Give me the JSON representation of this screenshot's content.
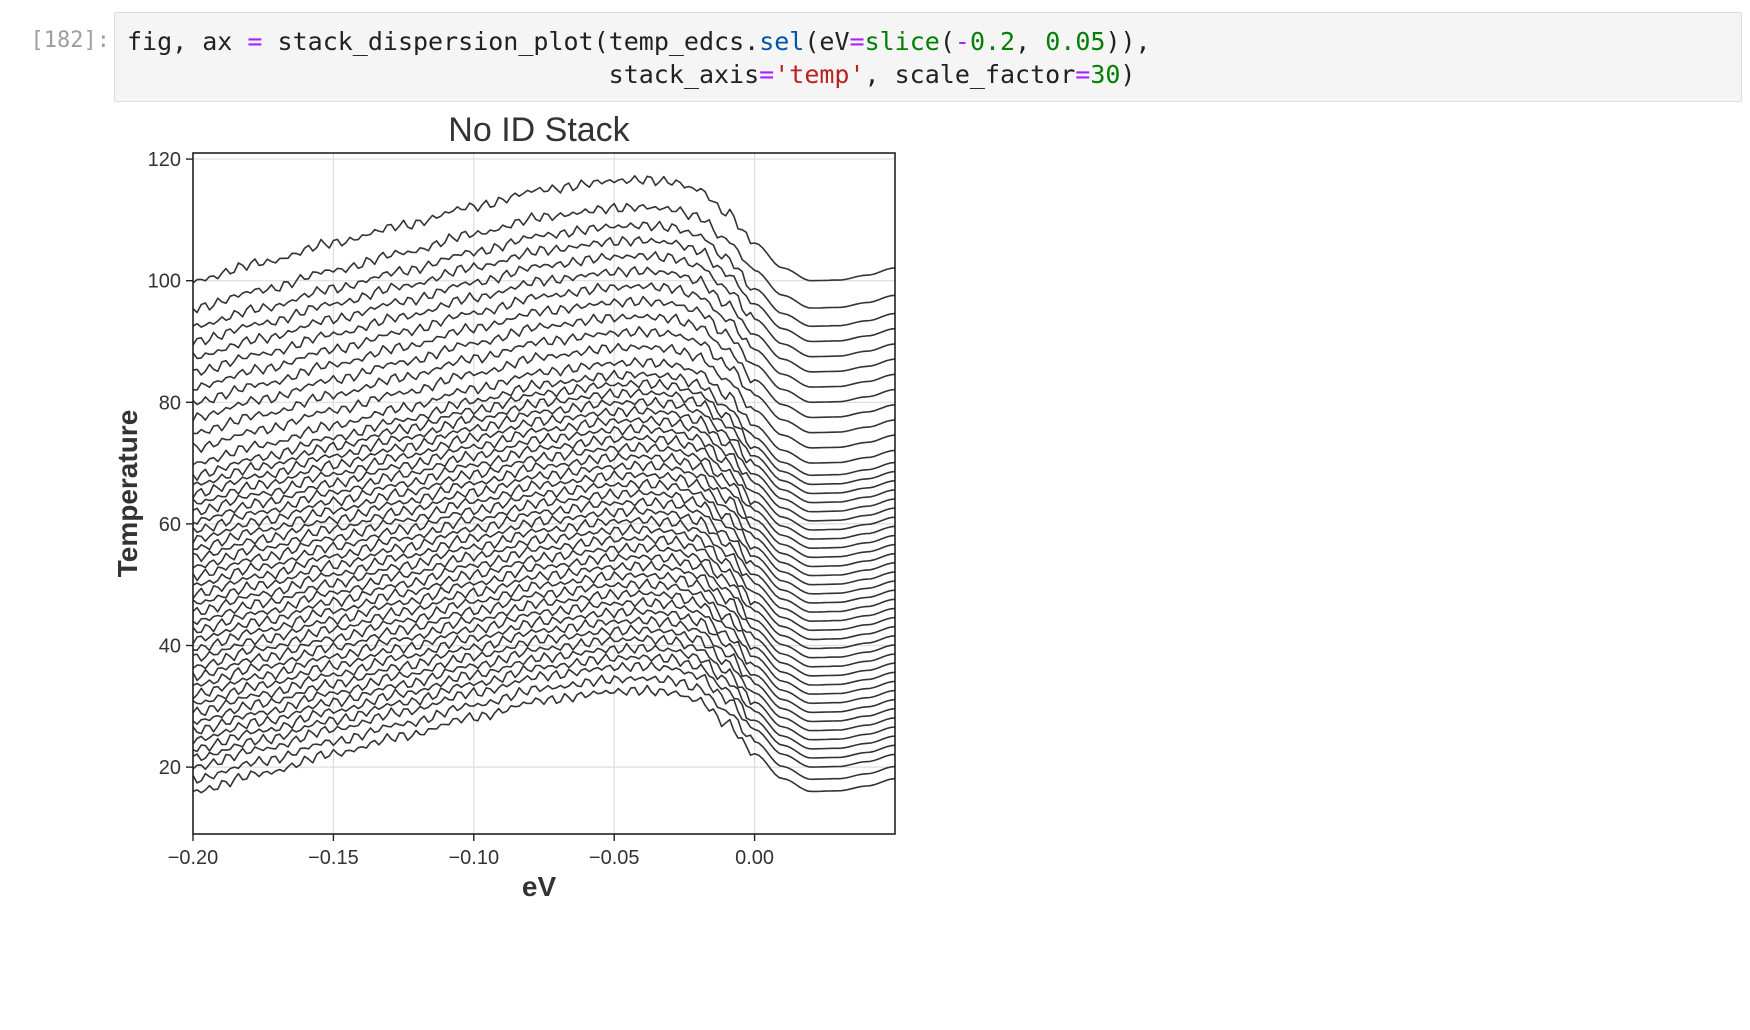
{
  "cell": {
    "prompt": "[182]:",
    "code_lines": [
      [
        {
          "t": "fig, ax ",
          "c": ""
        },
        {
          "t": "=",
          "c": "t-op"
        },
        {
          "t": " stack_dispersion_plot(temp_edcs.",
          "c": ""
        },
        {
          "t": "sel",
          "c": "t-func"
        },
        {
          "t": "(eV",
          "c": ""
        },
        {
          "t": "=",
          "c": "t-op"
        },
        {
          "t": "slice",
          "c": "t-builtin"
        },
        {
          "t": "(",
          "c": ""
        },
        {
          "t": "-",
          "c": "t-op"
        },
        {
          "t": "0.2",
          "c": "t-num"
        },
        {
          "t": ", ",
          "c": ""
        },
        {
          "t": "0.05",
          "c": "t-num"
        },
        {
          "t": ")),",
          "c": ""
        }
      ],
      [
        {
          "t": "                                stack_axis",
          "c": ""
        },
        {
          "t": "=",
          "c": "t-op"
        },
        {
          "t": "'temp'",
          "c": "t-str"
        },
        {
          "t": ", scale_factor",
          "c": ""
        },
        {
          "t": "=",
          "c": "t-op"
        },
        {
          "t": "30",
          "c": "t-num"
        },
        {
          "t": ")",
          "c": ""
        }
      ]
    ]
  },
  "chart_data": {
    "type": "line",
    "title": "No ID Stack",
    "xlabel": "eV",
    "ylabel": "Temperature",
    "xlim": [
      -0.2,
      0.05
    ],
    "ylim": [
      9,
      121
    ],
    "xticks": [
      -0.2,
      -0.15,
      -0.1,
      -0.05,
      0.0
    ],
    "xtick_labels": [
      "−0.20",
      "−0.15",
      "−0.10",
      "−0.05",
      "0.00"
    ],
    "yticks": [
      20,
      40,
      60,
      80,
      100,
      120
    ],
    "ytick_labels": [
      "20",
      "40",
      "60",
      "80",
      "100",
      "120"
    ],
    "grid": true,
    "line_color": "#333333",
    "x": [
      -0.2,
      -0.175,
      -0.15,
      -0.125,
      -0.1,
      -0.075,
      -0.05,
      -0.04,
      -0.03,
      -0.02,
      -0.01,
      0.0,
      0.01,
      0.02,
      0.03,
      0.04,
      0.05
    ],
    "series_shape": [
      0.0,
      3.0,
      6.2,
      9.1,
      12.2,
      15.0,
      16.4,
      16.6,
      16.3,
      15.0,
      11.2,
      6.2,
      2.1,
      0.0,
      0.1,
      0.9,
      2.1
    ],
    "series_offsets": [
      16,
      18,
      20,
      21.5,
      23,
      24.5,
      26,
      27.5,
      29,
      30.5,
      32,
      33.5,
      35,
      36.5,
      38,
      39.5,
      41,
      42.5,
      44,
      45.5,
      47,
      48.5,
      50,
      51.5,
      53,
      54.5,
      56,
      57.5,
      59,
      60.5,
      62,
      63.5,
      65,
      66.5,
      68,
      70,
      72.5,
      75,
      77.5,
      80,
      82.5,
      85,
      87.5,
      90,
      92.5,
      95.5,
      100
    ]
  }
}
